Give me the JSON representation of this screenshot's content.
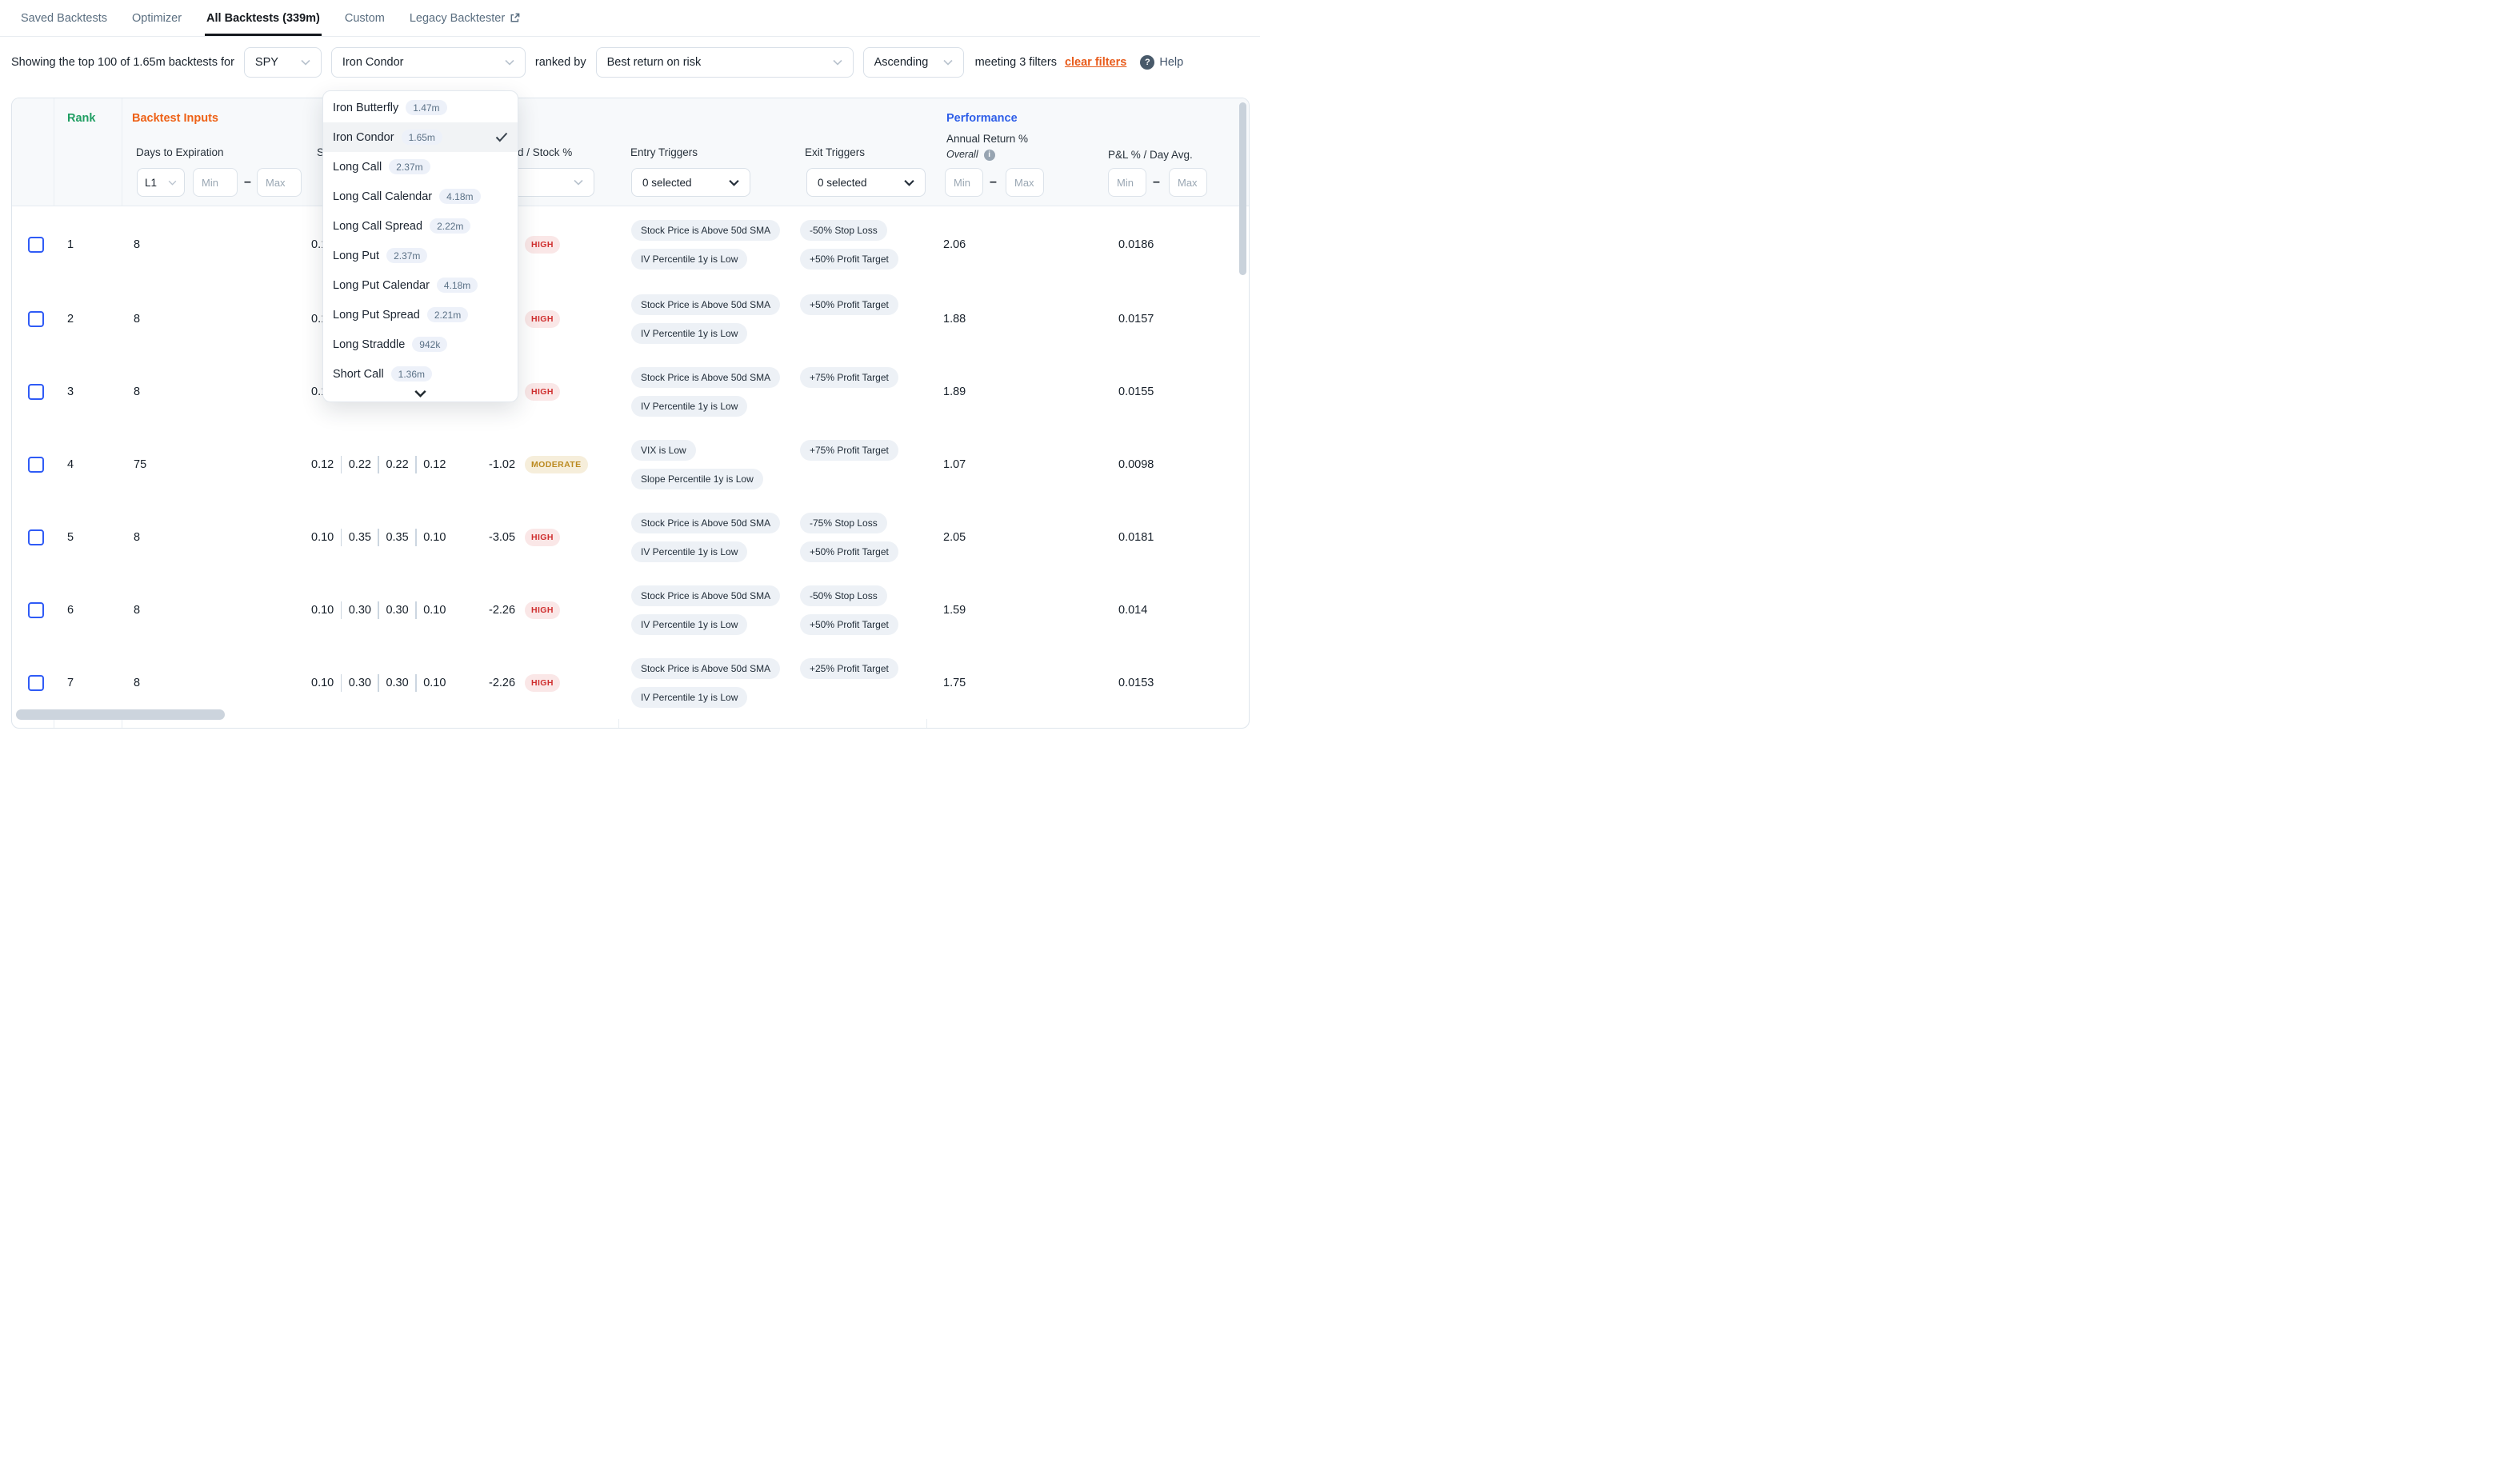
{
  "colors": {
    "accent_orange": "#ea5c1b",
    "rank_green": "#1f9e62",
    "performance_blue": "#2f5fe8",
    "checkbox_blue": "#2f5bf6",
    "risk_high_fg": "#cf2f2f",
    "risk_high_bg": "#fae7e7",
    "risk_moderate_fg": "#bb8a20",
    "risk_moderate_bg": "#f6eedb",
    "pill_bg": "#edf1f6"
  },
  "nav": {
    "tabs": [
      {
        "label": "Saved Backtests",
        "active": false,
        "external": false
      },
      {
        "label": "Optimizer",
        "active": false,
        "external": false
      },
      {
        "label": "All Backtests (339m)",
        "active": true,
        "external": false
      },
      {
        "label": "Custom",
        "active": false,
        "external": false
      },
      {
        "label": "Legacy Backtester",
        "active": false,
        "external": true
      }
    ]
  },
  "filter_bar": {
    "summary": "Showing the top 100 of 1.65m backtests for",
    "symbol": "SPY",
    "strategy": "Iron Condor",
    "ranked_by": "ranked by",
    "rank_metric": "Best return on risk",
    "order": "Ascending",
    "meeting": "meeting 3 filters",
    "clear_filters": "clear filters",
    "help": "Help"
  },
  "strategy_dropdown": {
    "items": [
      {
        "label": "Iron Butterfly",
        "count": "1.47m",
        "selected": false
      },
      {
        "label": "Iron Condor",
        "count": "1.65m",
        "selected": true
      },
      {
        "label": "Long Call",
        "count": "2.37m",
        "selected": false
      },
      {
        "label": "Long Call Calendar",
        "count": "4.18m",
        "selected": false
      },
      {
        "label": "Long Call Spread",
        "count": "2.22m",
        "selected": false
      },
      {
        "label": "Long Put",
        "count": "2.37m",
        "selected": false
      },
      {
        "label": "Long Put Calendar",
        "count": "4.18m",
        "selected": false
      },
      {
        "label": "Long Put Spread",
        "count": "2.21m",
        "selected": false
      },
      {
        "label": "Long Straddle",
        "count": "942k",
        "selected": false
      },
      {
        "label": "Short Call",
        "count": "1.36m",
        "selected": false
      }
    ]
  },
  "table": {
    "header": {
      "rank": "Rank",
      "inputs_section": "Backtest Inputs",
      "performance_section": "Performance",
      "dte_label": "Days to Expiration",
      "strikes_label_fragment": "St",
      "spread_label_fragment": "d / Stock %",
      "entry_label": "Entry Triggers",
      "exit_label": "Exit Triggers",
      "annual_label": "Annual Return %",
      "overall_label": "Overall",
      "pl_label": "P&L % / Day Avg.",
      "dte_preset": "L1",
      "min_placeholder": "Min",
      "max_placeholder": "Max",
      "entry_selected": "0 selected",
      "exit_selected": "0 selected"
    },
    "rows": [
      {
        "rank": "1",
        "dte": "8",
        "strikes": [
          "0.1"
        ],
        "spread": "",
        "risk": "HIGH",
        "entry": [
          "Stock Price is Above 50d SMA",
          "IV Percentile 1y is Low"
        ],
        "exit": [
          "-50% Stop Loss",
          "+50% Profit Target"
        ],
        "annual": "2.06",
        "pl_day": "0.0186"
      },
      {
        "rank": "2",
        "dte": "8",
        "strikes": [
          "0.1"
        ],
        "spread": "",
        "risk": "HIGH",
        "entry": [
          "Stock Price is Above 50d SMA",
          "IV Percentile 1y is Low"
        ],
        "exit": [
          "+50% Profit Target"
        ],
        "annual": "1.88",
        "pl_day": "0.0157"
      },
      {
        "rank": "3",
        "dte": "8",
        "strikes": [
          "0.1"
        ],
        "spread": "",
        "risk": "HIGH",
        "entry": [
          "Stock Price is Above 50d SMA",
          "IV Percentile 1y is Low"
        ],
        "exit": [
          "+75% Profit Target"
        ],
        "annual": "1.89",
        "pl_day": "0.0155"
      },
      {
        "rank": "4",
        "dte": "75",
        "strikes": [
          "0.12",
          "0.22",
          "0.22",
          "0.12"
        ],
        "spread": "-1.02",
        "risk": "MODERATE",
        "entry": [
          "VIX is Low",
          "Slope Percentile 1y is Low"
        ],
        "exit": [
          "+75% Profit Target"
        ],
        "annual": "1.07",
        "pl_day": "0.0098"
      },
      {
        "rank": "5",
        "dte": "8",
        "strikes": [
          "0.10",
          "0.35",
          "0.35",
          "0.10"
        ],
        "spread": "-3.05",
        "risk": "HIGH",
        "entry": [
          "Stock Price is Above 50d SMA",
          "IV Percentile 1y is Low"
        ],
        "exit": [
          "-75% Stop Loss",
          "+50% Profit Target"
        ],
        "annual": "2.05",
        "pl_day": "0.0181"
      },
      {
        "rank": "6",
        "dte": "8",
        "strikes": [
          "0.10",
          "0.30",
          "0.30",
          "0.10"
        ],
        "spread": "-2.26",
        "risk": "HIGH",
        "entry": [
          "Stock Price is Above 50d SMA",
          "IV Percentile 1y is Low"
        ],
        "exit": [
          "-50% Stop Loss",
          "+50% Profit Target"
        ],
        "annual": "1.59",
        "pl_day": "0.014"
      },
      {
        "rank": "7",
        "dte": "8",
        "strikes": [
          "0.10",
          "0.30",
          "0.30",
          "0.10"
        ],
        "spread": "-2.26",
        "risk": "HIGH",
        "entry": [
          "Stock Price is Above 50d SMA",
          "IV Percentile 1y is Low"
        ],
        "exit": [
          "+25% Profit Target"
        ],
        "annual": "1.75",
        "pl_day": "0.0153"
      }
    ]
  }
}
